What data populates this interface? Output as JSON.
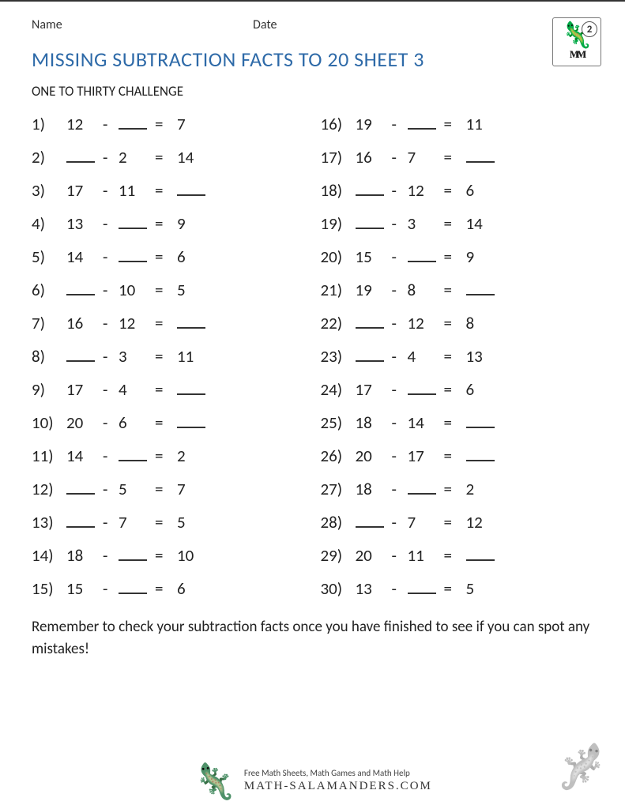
{
  "header": {
    "name_label": "Name",
    "date_label": "Date",
    "grade_badge": "2"
  },
  "title": "MISSING SUBTRACTION FACTS TO 20 SHEET 3",
  "subtitle": "ONE TO THIRTY CHALLENGE",
  "blank": "___",
  "footer_note": "Remember to check your subtraction facts once you have finished to see if you can spot any mistakes!",
  "logo": {
    "tagline": "Free Math Sheets, Math Games and Math Help",
    "site": "MATH-SALAMANDERS.COM"
  },
  "problems_left": [
    {
      "n": "1)",
      "a": "12",
      "b": "___",
      "r": "7"
    },
    {
      "n": "2)",
      "a": "___",
      "b": "2",
      "r": "14"
    },
    {
      "n": "3)",
      "a": "17",
      "b": "11",
      "r": "___"
    },
    {
      "n": "4)",
      "a": "13",
      "b": "___",
      "r": "9"
    },
    {
      "n": "5)",
      "a": "14",
      "b": "___",
      "r": "6"
    },
    {
      "n": "6)",
      "a": "___",
      "b": "10",
      "r": "5"
    },
    {
      "n": "7)",
      "a": "16",
      "b": "12",
      "r": "___"
    },
    {
      "n": "8)",
      "a": "___",
      "b": "3",
      "r": "11"
    },
    {
      "n": "9)",
      "a": "17",
      "b": "4",
      "r": "___"
    },
    {
      "n": "10)",
      "a": "20",
      "b": "6",
      "r": "___"
    },
    {
      "n": "11)",
      "a": "14",
      "b": "___",
      "r": "2"
    },
    {
      "n": "12)",
      "a": "___",
      "b": "5",
      "r": "7"
    },
    {
      "n": "13)",
      "a": "___",
      "b": "7",
      "r": "5"
    },
    {
      "n": "14)",
      "a": "18",
      "b": "___",
      "r": "10"
    },
    {
      "n": "15)",
      "a": "15",
      "b": "___",
      "r": "6"
    }
  ],
  "problems_right": [
    {
      "n": "16)",
      "a": "19",
      "b": "___",
      "r": "11"
    },
    {
      "n": "17)",
      "a": "16",
      "b": "7",
      "r": "___"
    },
    {
      "n": "18)",
      "a": "___",
      "b": "12",
      "r": "6"
    },
    {
      "n": "19)",
      "a": "___",
      "b": "3",
      "r": "14"
    },
    {
      "n": "20)",
      "a": "15",
      "b": "___",
      "r": "9"
    },
    {
      "n": "21)",
      "a": "19",
      "b": "8",
      "r": "___"
    },
    {
      "n": "22)",
      "a": "___",
      "b": "12",
      "r": "8"
    },
    {
      "n": "23)",
      "a": "___",
      "b": "4",
      "r": "13"
    },
    {
      "n": "24)",
      "a": "17",
      "b": "___",
      "r": "6"
    },
    {
      "n": "25)",
      "a": "18",
      "b": "14",
      "r": "___"
    },
    {
      "n": "26)",
      "a": "20",
      "b": "17",
      "r": "___"
    },
    {
      "n": "27)",
      "a": "18",
      "b": "___",
      "r": "2"
    },
    {
      "n": "28)",
      "a": "___",
      "b": "7",
      "r": "12"
    },
    {
      "n": "29)",
      "a": "20",
      "b": "11",
      "r": "___"
    },
    {
      "n": "30)",
      "a": "13",
      "b": "___",
      "r": "5"
    }
  ]
}
